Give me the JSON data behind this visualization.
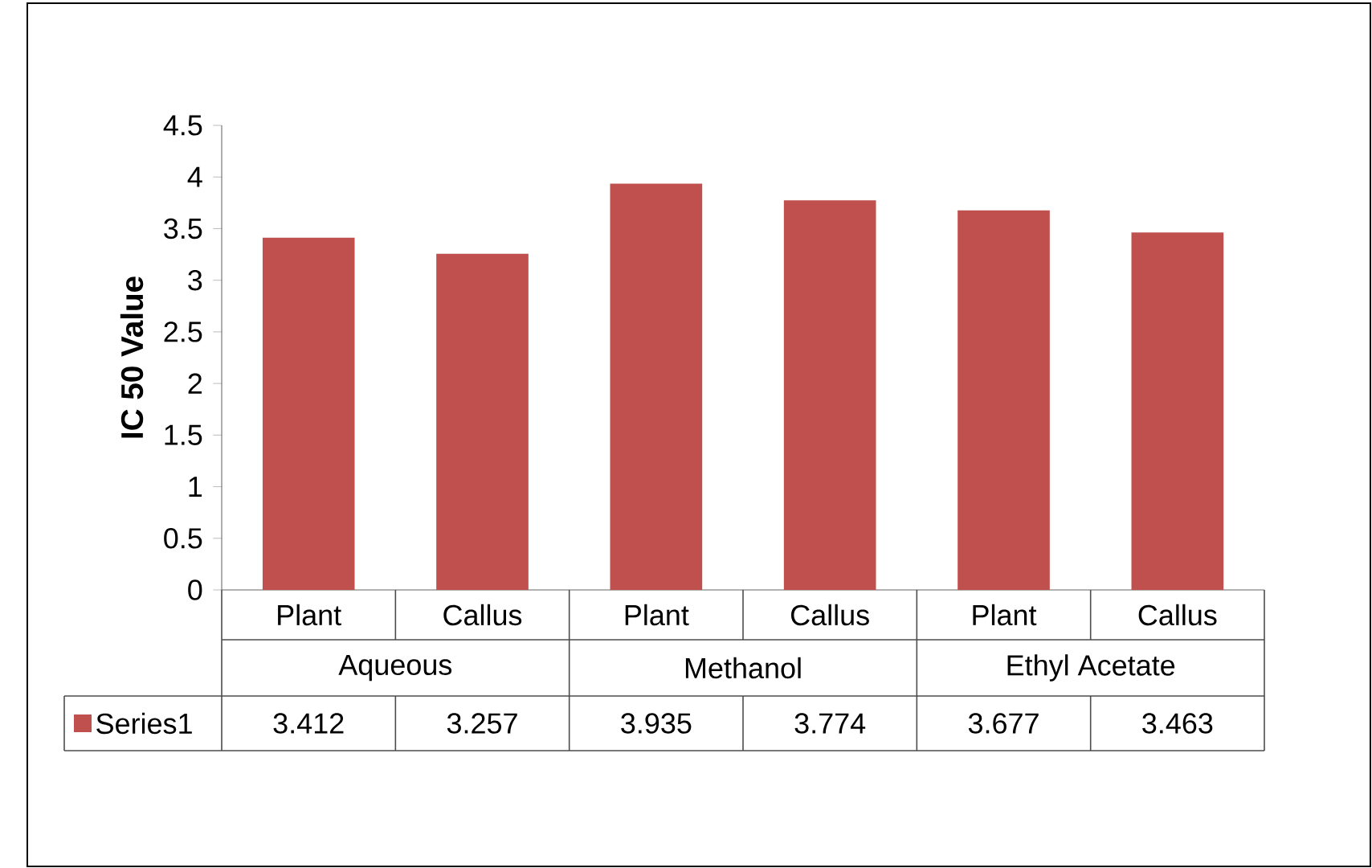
{
  "chart_data": {
    "type": "bar",
    "ylabel": "IC 50 Value",
    "categories": [
      "Plant",
      "Callus",
      "Plant",
      "Callus",
      "Plant",
      "Callus"
    ],
    "annotations": [
      "Aqueous",
      "Methanol",
      "Ethyl Acetate"
    ],
    "series": [
      {
        "name": "Series1",
        "color": "#c0504d",
        "values": [
          3.412,
          3.257,
          3.935,
          3.774,
          3.677,
          3.463
        ]
      }
    ],
    "ylim": [
      0,
      4.5
    ],
    "yticks": [
      0,
      0.5,
      1,
      1.5,
      2,
      2.5,
      3,
      3.5,
      4,
      4.5
    ],
    "data_labels": true,
    "legend": "bottom",
    "grid": false
  }
}
